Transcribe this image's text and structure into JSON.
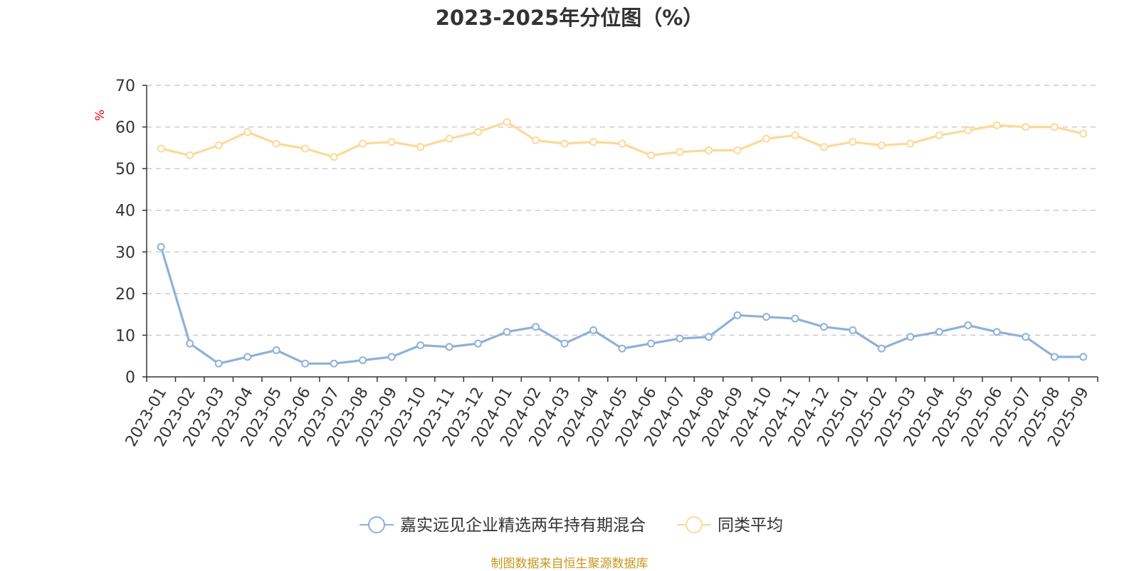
{
  "chart_data": {
    "type": "line",
    "title": "2023-2025年分位图（%）",
    "ylabel": "%",
    "ylim": [
      0,
      70
    ],
    "yticks": [
      0,
      10,
      20,
      30,
      40,
      50,
      60,
      70
    ],
    "grid": true,
    "legend_position": "bottom",
    "categories": [
      "2023-01",
      "2023-02",
      "2023-03",
      "2023-04",
      "2023-05",
      "2023-06",
      "2023-07",
      "2023-08",
      "2023-09",
      "2023-10",
      "2023-11",
      "2023-12",
      "2024-01",
      "2024-02",
      "2024-03",
      "2024-04",
      "2024-05",
      "2024-06",
      "2024-07",
      "2024-08",
      "2024-09",
      "2024-10",
      "2024-11",
      "2024-12",
      "2025-01",
      "2025-02",
      "2025-03",
      "2025-04",
      "2025-05",
      "2025-06",
      "2025-07",
      "2025-08",
      "2025-09"
    ],
    "series": [
      {
        "name": "嘉实远见企业精选两年持有期混合",
        "color": "#8eb0dc",
        "values": [
          31.2,
          8.0,
          3.2,
          4.8,
          6.4,
          3.2,
          3.2,
          4.0,
          4.8,
          7.6,
          7.2,
          8.0,
          10.8,
          12.0,
          8.0,
          11.2,
          6.8,
          8.0,
          9.2,
          9.6,
          14.8,
          14.4,
          14.0,
          12.0,
          11.2,
          6.8,
          9.6,
          10.8,
          12.4,
          10.8,
          9.6,
          4.8,
          4.8
        ]
      },
      {
        "name": "同类平均",
        "color": "#fcd998",
        "values": [
          54.8,
          53.2,
          55.6,
          58.8,
          56.0,
          54.8,
          52.8,
          56.0,
          56.4,
          55.2,
          57.2,
          58.8,
          61.2,
          56.8,
          56.0,
          56.4,
          56.0,
          53.2,
          54.0,
          54.4,
          54.4,
          57.2,
          58.0,
          55.2,
          56.4,
          55.6,
          56.0,
          58.0,
          59.2,
          60.4,
          60.0,
          60.0,
          58.4
        ]
      }
    ]
  },
  "source": "制图数据来自恒生聚源数据库"
}
